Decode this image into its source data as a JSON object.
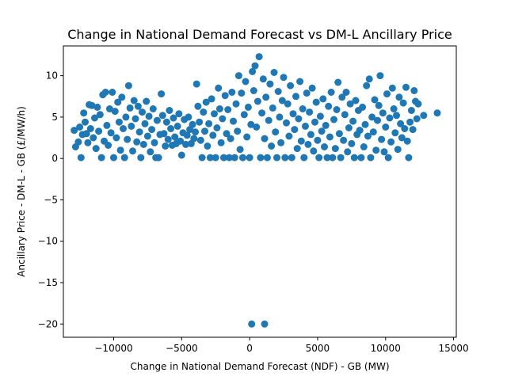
{
  "chart_data": {
    "type": "scatter",
    "title": "Change in National Demand Forecast vs DM-L Ancillary Price",
    "xlabel": "Change in National Demand Forecast (NDF) - GB (MW)",
    "ylabel": "Ancillary Price - DM-L - GB (£/MW/h)",
    "xlim": [
      -13700,
      15200
    ],
    "ylim": [
      -21.6,
      13.6
    ],
    "x_ticks": [
      -10000,
      -5000,
      0,
      5000,
      10000,
      15000
    ],
    "y_ticks": [
      -20,
      -15,
      -10,
      -5,
      0,
      5,
      10
    ],
    "x_tick_labels": [
      "−10000",
      "−5000",
      "0",
      "5000",
      "10000",
      "15000"
    ],
    "y_tick_labels": [
      "−20",
      "−15",
      "−10",
      "−5",
      "0",
      "5",
      "10"
    ],
    "grid": false,
    "legend": "none",
    "color": "#1f77b4",
    "series": [
      {
        "name": "",
        "points": [
          [
            -12900,
            3.4
          ],
          [
            -12800,
            1.4
          ],
          [
            -12600,
            2.0
          ],
          [
            -12500,
            3.8
          ],
          [
            -12400,
            0.1
          ],
          [
            -12300,
            2.9
          ],
          [
            -12200,
            5.5
          ],
          [
            -12100,
            4.4
          ],
          [
            -12000,
            3.0
          ],
          [
            -11900,
            1.9
          ],
          [
            -11800,
            6.5
          ],
          [
            -11700,
            3.6
          ],
          [
            -11600,
            6.4
          ],
          [
            -11500,
            2.5
          ],
          [
            -11400,
            4.9
          ],
          [
            -11300,
            1.2
          ],
          [
            -11200,
            6.2
          ],
          [
            -11100,
            3.3
          ],
          [
            -11000,
            5.3
          ],
          [
            -10900,
            0.1
          ],
          [
            -10800,
            7.7
          ],
          [
            -10700,
            2.1
          ],
          [
            -10600,
            8.0
          ],
          [
            -10500,
            4.0
          ],
          [
            -10400,
            1.6
          ],
          [
            -10300,
            6.0
          ],
          [
            -10200,
            3.1
          ],
          [
            -10100,
            8.0
          ],
          [
            -10000,
            0.1
          ],
          [
            -9900,
            5.7
          ],
          [
            -9800,
            2.5
          ],
          [
            -9700,
            6.8
          ],
          [
            -9600,
            4.4
          ],
          [
            -9500,
            1.0
          ],
          [
            -9400,
            7.4
          ],
          [
            -9300,
            3.6
          ],
          [
            -9200,
            0.1
          ],
          [
            -9100,
            5.0
          ],
          [
            -9000,
            2.3
          ],
          [
            -8900,
            8.8
          ],
          [
            -8800,
            6.1
          ],
          [
            -8700,
            3.9
          ],
          [
            -8600,
            0.9
          ],
          [
            -8500,
            7.0
          ],
          [
            -8400,
            4.8
          ],
          [
            -8300,
            2.0
          ],
          [
            -8200,
            6.3
          ],
          [
            -8100,
            3.2
          ],
          [
            -8000,
            0.1
          ],
          [
            -7900,
            5.6
          ],
          [
            -7800,
            1.7
          ],
          [
            -7700,
            4.2
          ],
          [
            -7600,
            6.9
          ],
          [
            -7500,
            2.7
          ],
          [
            -7400,
            5.1
          ],
          [
            -7300,
            0.8
          ],
          [
            -7200,
            3.5
          ],
          [
            -7100,
            6.0
          ],
          [
            -7000,
            1.9
          ],
          [
            -6900,
            0.1
          ],
          [
            -6800,
            4.6
          ],
          [
            -6700,
            0.1
          ],
          [
            -6600,
            2.9
          ],
          [
            -6500,
            7.8
          ],
          [
            -6400,
            5.2
          ],
          [
            -6300,
            3.0
          ],
          [
            -6200,
            1.5
          ],
          [
            -6100,
            4.4
          ],
          [
            -6000,
            2.3
          ],
          [
            -5900,
            5.8
          ],
          [
            -5800,
            3.6
          ],
          [
            -5700,
            1.6
          ],
          [
            -5600,
            4.9
          ],
          [
            -5500,
            2.6
          ],
          [
            -5400,
            1.8
          ],
          [
            -5300,
            3.9
          ],
          [
            -5200,
            5.4
          ],
          [
            -5100,
            2.1
          ],
          [
            -5000,
            0.4
          ],
          [
            -4900,
            3.1
          ],
          [
            -4800,
            4.7
          ],
          [
            -4700,
            1.7
          ],
          [
            -4600,
            2.8
          ],
          [
            -4500,
            5.0
          ],
          [
            -4400,
            3.5
          ],
          [
            -4300,
            1.8
          ],
          [
            -4200,
            4.1
          ],
          [
            -4100,
            2.4
          ],
          [
            -4000,
            3.2
          ],
          [
            -3900,
            9.0
          ],
          [
            -3800,
            6.3
          ],
          [
            -3700,
            4.4
          ],
          [
            -3600,
            2.2
          ],
          [
            -3500,
            0.1
          ],
          [
            -3400,
            5.6
          ],
          [
            -3300,
            3.3
          ],
          [
            -3200,
            6.8
          ],
          [
            -3100,
            1.5
          ],
          [
            -3000,
            4.2
          ],
          [
            -2900,
            0.1
          ],
          [
            -2800,
            7.2
          ],
          [
            -2700,
            2.8
          ],
          [
            -2600,
            5.4
          ],
          [
            -2500,
            0.1
          ],
          [
            -2400,
            3.7
          ],
          [
            -2300,
            8.5
          ],
          [
            -2200,
            6.0
          ],
          [
            -2100,
            1.9
          ],
          [
            -2000,
            4.8
          ],
          [
            -1900,
            0.1
          ],
          [
            -1800,
            7.6
          ],
          [
            -1700,
            3.0
          ],
          [
            -1600,
            5.9
          ],
          [
            -1500,
            0.1
          ],
          [
            -1400,
            2.4
          ],
          [
            -1300,
            8.0
          ],
          [
            -1200,
            4.5
          ],
          [
            -1100,
            0.1
          ],
          [
            -1000,
            6.6
          ],
          [
            -900,
            3.3
          ],
          [
            -800,
            10.0
          ],
          [
            -700,
            1.1
          ],
          [
            -600,
            7.9
          ],
          [
            -500,
            0.1
          ],
          [
            -400,
            5.3
          ],
          [
            -300,
            9.3
          ],
          [
            -200,
            2.6
          ],
          [
            -100,
            6.2
          ],
          [
            0,
            0.1
          ],
          [
            100,
            4.1
          ],
          [
            200,
            10.5
          ],
          [
            300,
            8.2
          ],
          [
            400,
            11.2
          ],
          [
            500,
            3.8
          ],
          [
            600,
            6.9
          ],
          [
            700,
            12.3
          ],
          [
            800,
            0.1
          ],
          [
            900,
            5.5
          ],
          [
            1000,
            9.6
          ],
          [
            1100,
            2.4
          ],
          [
            1200,
            7.4
          ],
          [
            1300,
            0.1
          ],
          [
            1400,
            4.6
          ],
          [
            1500,
            9.0
          ],
          [
            1600,
            1.5
          ],
          [
            1700,
            6.1
          ],
          [
            1800,
            10.4
          ],
          [
            1900,
            3.2
          ],
          [
            2000,
            0.1
          ],
          [
            2100,
            8.1
          ],
          [
            2200,
            5.0
          ],
          [
            2300,
            1.9
          ],
          [
            2400,
            7.0
          ],
          [
            2500,
            9.8
          ],
          [
            2600,
            0.1
          ],
          [
            2700,
            4.3
          ],
          [
            2800,
            6.6
          ],
          [
            2900,
            2.7
          ],
          [
            3000,
            8.8
          ],
          [
            3100,
            0.1
          ],
          [
            3200,
            5.4
          ],
          [
            3300,
            3.5
          ],
          [
            3400,
            7.5
          ],
          [
            3500,
            1.2
          ],
          [
            3600,
            4.8
          ],
          [
            3700,
            9.3
          ],
          [
            3800,
            2.1
          ],
          [
            3900,
            6.0
          ],
          [
            4000,
            0.1
          ],
          [
            4100,
            3.9
          ],
          [
            4200,
            7.9
          ],
          [
            4300,
            1.7
          ],
          [
            4400,
            5.6
          ],
          [
            4500,
            2.9
          ],
          [
            4600,
            8.5
          ],
          [
            4700,
            0.9
          ],
          [
            4800,
            4.4
          ],
          [
            4900,
            6.8
          ],
          [
            5000,
            2.2
          ],
          [
            5100,
            0.1
          ],
          [
            5200,
            5.1
          ],
          [
            5300,
            3.3
          ],
          [
            5400,
            7.2
          ],
          [
            5500,
            1.4
          ],
          [
            5600,
            4.0
          ],
          [
            5700,
            0.1
          ],
          [
            5800,
            6.3
          ],
          [
            5900,
            2.6
          ],
          [
            6000,
            8.0
          ],
          [
            6100,
            0.1
          ],
          [
            6200,
            4.7
          ],
          [
            6300,
            1.2
          ],
          [
            6400,
            5.9
          ],
          [
            6500,
            9.2
          ],
          [
            6600,
            3.0
          ],
          [
            6700,
            0.1
          ],
          [
            6800,
            7.4
          ],
          [
            6900,
            2.2
          ],
          [
            7000,
            5.3
          ],
          [
            7100,
            8.0
          ],
          [
            7200,
            0.8
          ],
          [
            7300,
            3.7
          ],
          [
            7400,
            6.6
          ],
          [
            7500,
            1.8
          ],
          [
            7600,
            4.5
          ],
          [
            7700,
            0.1
          ],
          [
            7800,
            7.0
          ],
          [
            7900,
            2.9
          ],
          [
            8000,
            5.8
          ],
          [
            8100,
            3.4
          ],
          [
            8200,
            0.1
          ],
          [
            8300,
            6.2
          ],
          [
            8400,
            1.4
          ],
          [
            8500,
            4.1
          ],
          [
            8600,
            8.8
          ],
          [
            8700,
            2.7
          ],
          [
            8800,
            9.6
          ],
          [
            8900,
            0.1
          ],
          [
            9000,
            5.0
          ],
          [
            9100,
            3.2
          ],
          [
            9200,
            7.1
          ],
          [
            9300,
            1.0
          ],
          [
            9400,
            4.6
          ],
          [
            9500,
            6.4
          ],
          [
            9600,
            10.0
          ],
          [
            9700,
            2.3
          ],
          [
            9800,
            5.5
          ],
          [
            9900,
            0.8
          ],
          [
            10000,
            3.8
          ],
          [
            10100,
            7.8
          ],
          [
            10200,
            0.1
          ],
          [
            10300,
            4.9
          ],
          [
            10400,
            2.0
          ],
          [
            10500,
            8.5
          ],
          [
            10600,
            6.0
          ],
          [
            10700,
            3.1
          ],
          [
            10800,
            5.2
          ],
          [
            10900,
            1.1
          ],
          [
            11000,
            7.4
          ],
          [
            11100,
            4.2
          ],
          [
            11200,
            2.5
          ],
          [
            11300,
            6.7
          ],
          [
            11400,
            3.6
          ],
          [
            11500,
            8.6
          ],
          [
            11600,
            2.1
          ],
          [
            11700,
            0.1
          ],
          [
            11800,
            4.4
          ],
          [
            11900,
            5.8
          ],
          [
            12000,
            3.5
          ],
          [
            12100,
            8.2
          ],
          [
            12200,
            6.9
          ],
          [
            12300,
            4.8
          ],
          [
            12400,
            6.6
          ],
          [
            12800,
            5.2
          ],
          [
            13800,
            5.5
          ],
          [
            150,
            -20.0
          ],
          [
            1100,
            -20.0
          ]
        ]
      }
    ]
  }
}
